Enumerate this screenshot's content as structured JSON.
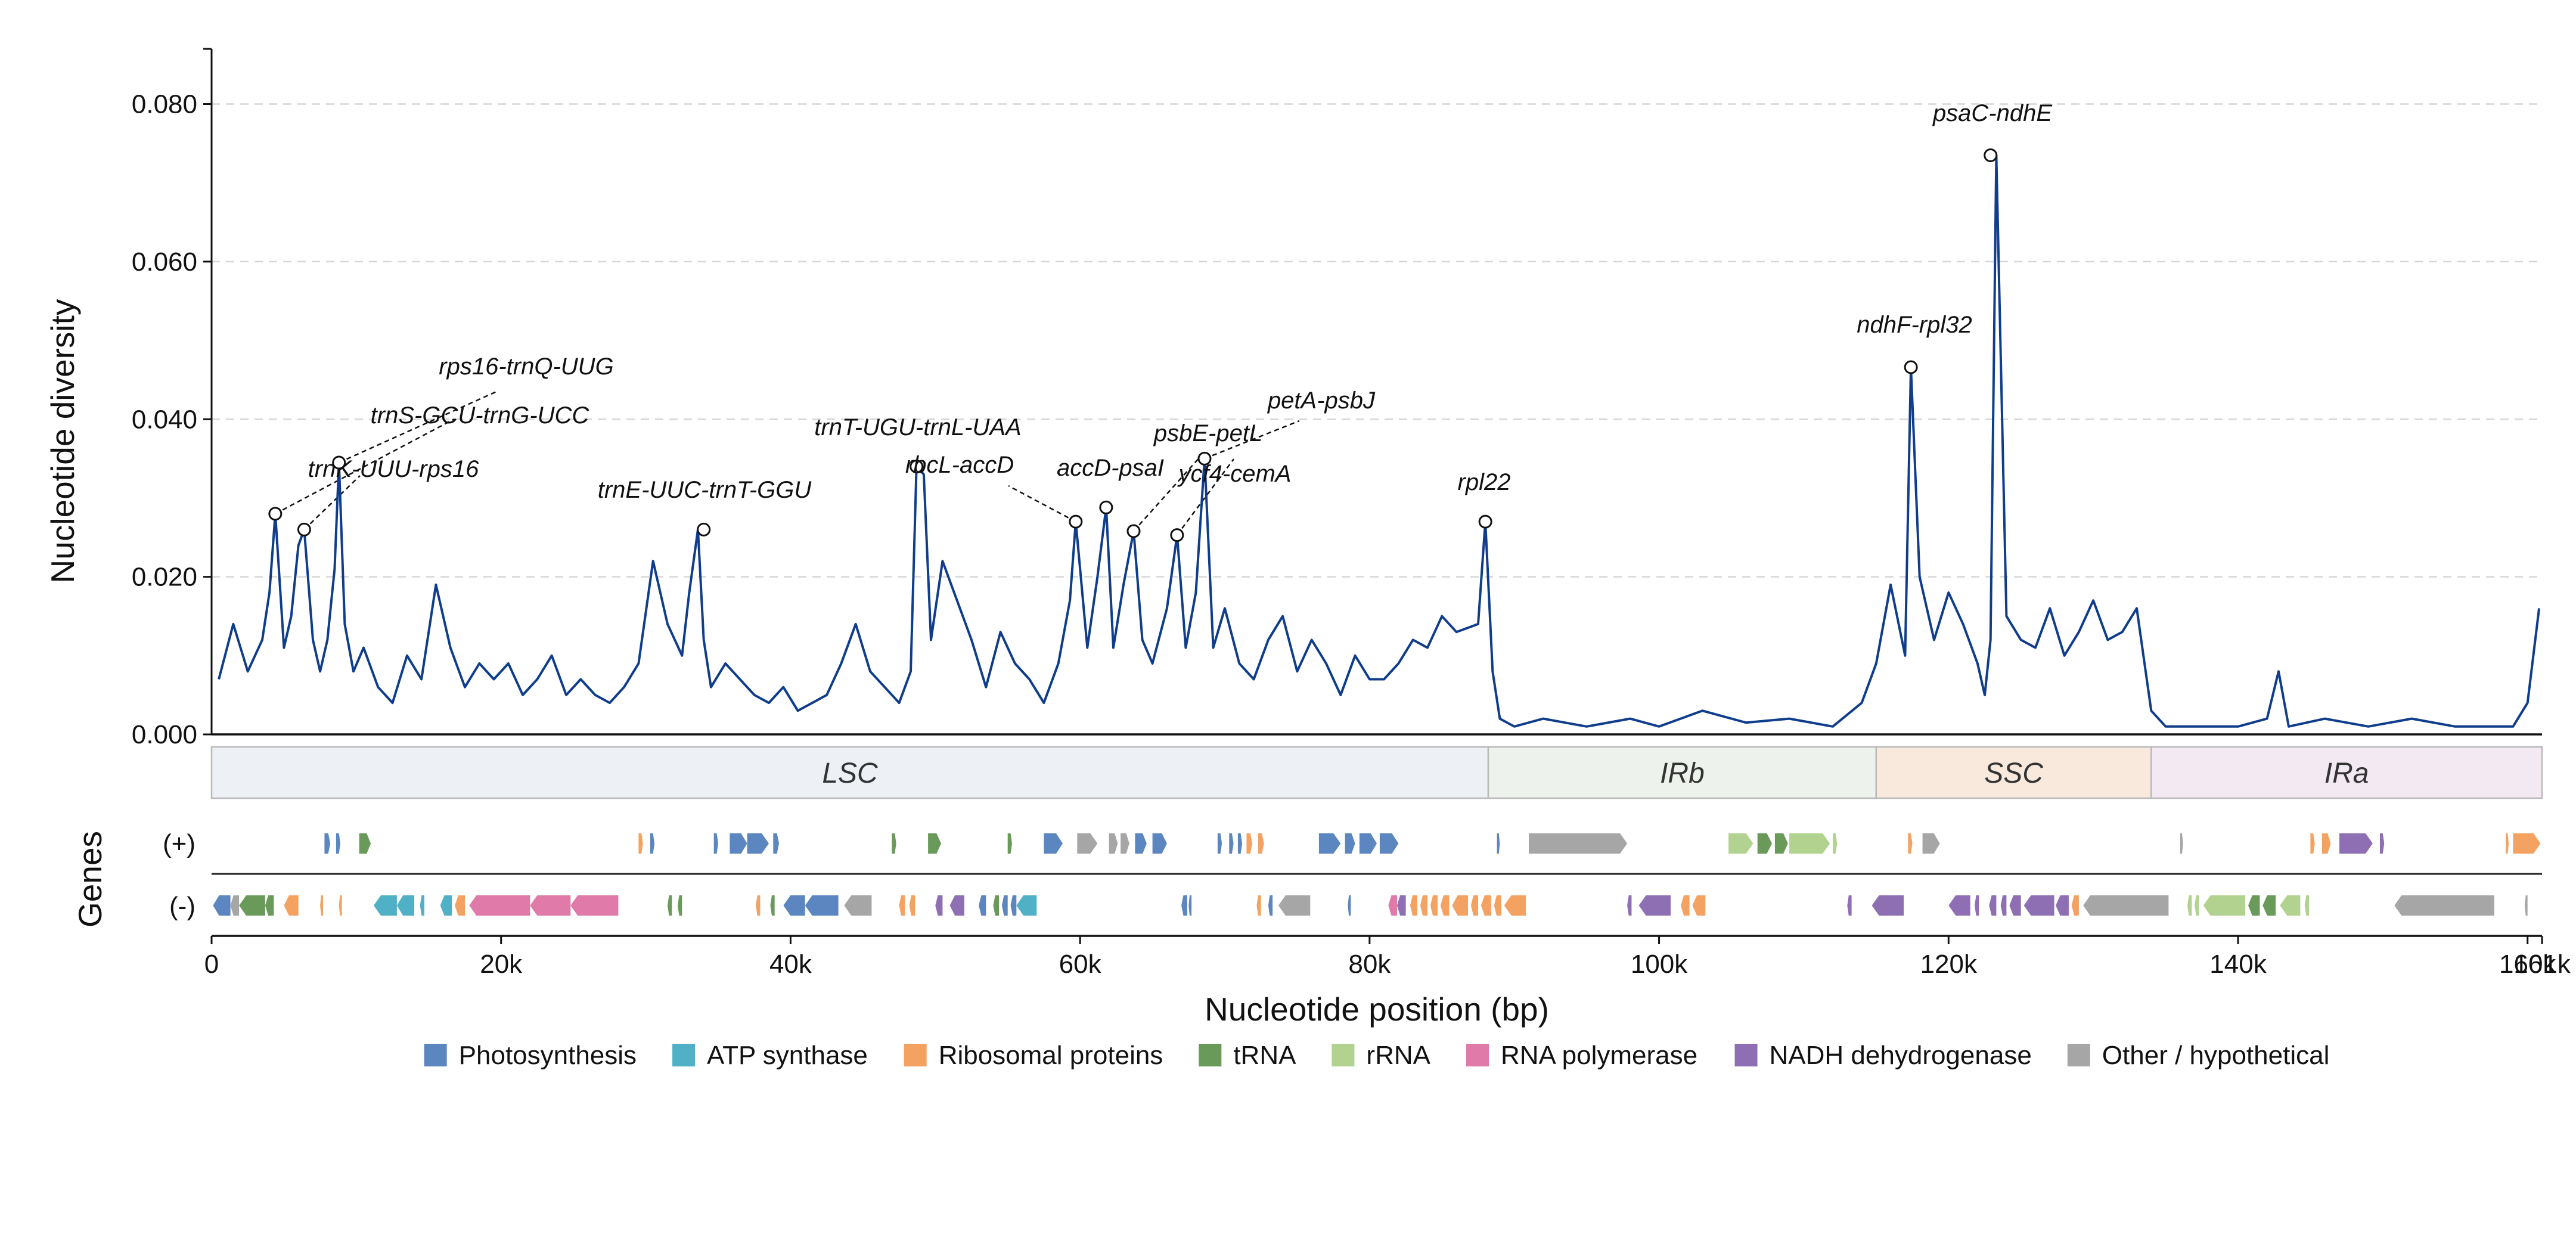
{
  "chart_data": {
    "type": "line",
    "ylabel": "Nucleotide diversity",
    "xlabel": "Nucleotide position (bp)",
    "ylim": [
      0,
      0.087
    ],
    "yticks": [
      0.0,
      0.02,
      0.04,
      0.06,
      0.08
    ],
    "ytick_labels": [
      "0.000",
      "0.020",
      "0.040",
      "0.060",
      "0.080"
    ],
    "xlim": [
      0,
      161000
    ],
    "xticks": [
      0,
      20000,
      40000,
      60000,
      80000,
      100000,
      120000,
      140000,
      160000,
      161000
    ],
    "xtick_labels": [
      "0",
      "20k",
      "40k",
      "60k",
      "80k",
      "100k",
      "120k",
      "140k",
      "160k",
      "161k"
    ],
    "grid": "y dashed",
    "line_color": "#0f3d8c",
    "series": [
      {
        "x": [
          500,
          1500,
          2500,
          3500,
          4000,
          4400,
          5000,
          5500,
          6000,
          6400,
          7000,
          7500,
          8000,
          8500,
          8800,
          9200,
          9800,
          10500,
          11500,
          12500,
          13500,
          14500,
          15500,
          16500,
          17500,
          18500,
          19500,
          20500,
          21500,
          22500,
          23500,
          24500,
          25500,
          26500,
          27500,
          28500,
          29500,
          30500,
          31500,
          32500,
          33000,
          33600,
          34000,
          34500,
          35500,
          36500,
          37500,
          38500,
          39500,
          40500,
          41500,
          42500,
          43500,
          44500,
          45500,
          46500,
          47500,
          48300,
          48700,
          49200,
          49700,
          50500,
          51500,
          52500,
          53500,
          54500,
          55500,
          56500,
          57500,
          58500,
          59300,
          59700,
          60500,
          61200,
          61800,
          62300,
          63000,
          63700,
          64300,
          65000,
          66000,
          66700,
          67300,
          68000,
          68600,
          69200,
          70000,
          71000,
          72000,
          73000,
          74000,
          75000,
          76000,
          77000,
          78000,
          79000,
          80000,
          81000,
          82000,
          83000,
          84000,
          85000,
          86000,
          87500,
          88000,
          88500,
          89000,
          90000,
          92000,
          95000,
          98000,
          100000,
          103000,
          106000,
          109000,
          112000,
          114000,
          115000,
          116000,
          117000,
          117400,
          118000,
          119000,
          120000,
          121000,
          122000,
          122500,
          122900,
          123300,
          124000,
          125000,
          126000,
          127000,
          128000,
          129000,
          130000,
          131000,
          132000,
          133000,
          134000,
          135000,
          137000,
          140000,
          142000,
          142800,
          143500,
          146000,
          149000,
          152000,
          155000,
          157000,
          159000,
          160000,
          160800
        ],
        "y": [
          0.007,
          0.014,
          0.008,
          0.012,
          0.018,
          0.028,
          0.011,
          0.015,
          0.024,
          0.026,
          0.012,
          0.008,
          0.012,
          0.021,
          0.0345,
          0.014,
          0.008,
          0.011,
          0.006,
          0.004,
          0.01,
          0.007,
          0.019,
          0.011,
          0.006,
          0.009,
          0.007,
          0.009,
          0.005,
          0.007,
          0.01,
          0.005,
          0.007,
          0.005,
          0.004,
          0.006,
          0.009,
          0.022,
          0.014,
          0.01,
          0.018,
          0.026,
          0.012,
          0.006,
          0.009,
          0.007,
          0.005,
          0.004,
          0.006,
          0.003,
          0.004,
          0.005,
          0.009,
          0.014,
          0.008,
          0.006,
          0.004,
          0.008,
          0.034,
          0.033,
          0.012,
          0.022,
          0.017,
          0.012,
          0.006,
          0.013,
          0.009,
          0.007,
          0.004,
          0.009,
          0.017,
          0.027,
          0.011,
          0.02,
          0.0288,
          0.011,
          0.019,
          0.0258,
          0.012,
          0.009,
          0.016,
          0.0253,
          0.011,
          0.018,
          0.035,
          0.011,
          0.016,
          0.009,
          0.007,
          0.012,
          0.015,
          0.008,
          0.012,
          0.009,
          0.005,
          0.01,
          0.007,
          0.007,
          0.009,
          0.012,
          0.011,
          0.015,
          0.013,
          0.014,
          0.027,
          0.008,
          0.002,
          0.001,
          0.002,
          0.001,
          0.002,
          0.001,
          0.003,
          0.0015,
          0.002,
          0.001,
          0.004,
          0.009,
          0.019,
          0.01,
          0.0466,
          0.02,
          0.012,
          0.018,
          0.014,
          0.009,
          0.005,
          0.012,
          0.0735,
          0.015,
          0.012,
          0.011,
          0.016,
          0.01,
          0.013,
          0.017,
          0.012,
          0.013,
          0.016,
          0.003,
          0.001,
          0.001,
          0.001,
          0.002,
          0.008,
          0.001,
          0.002,
          0.001,
          0.002,
          0.001,
          0.001,
          0.001,
          0.004,
          0.016
        ]
      }
    ],
    "annotations": [
      {
        "label": "trnK-UUU-rps16",
        "x": 6400,
        "y": 0.026
      },
      {
        "label": "trnS-GCU-trnG-UCC",
        "x": 4400,
        "y": 0.028
      },
      {
        "label": "rps16-trnQ-UUG",
        "x": 8800,
        "y": 0.0345
      },
      {
        "label": "trnE-UUC-trnT-GGU",
        "x": 34000,
        "y": 0.026
      },
      {
        "label": "trnT-UGU-trnL-UAA",
        "x": 48700,
        "y": 0.034
      },
      {
        "label": "rbcL-accD",
        "x": 59700,
        "y": 0.027
      },
      {
        "label": "accD-psaI",
        "x": 61800,
        "y": 0.0288
      },
      {
        "label": "psbE-petL",
        "x": 63700,
        "y": 0.0258
      },
      {
        "label": "ycf4-cemA",
        "x": 66700,
        "y": 0.0253
      },
      {
        "label": "petA-psbJ",
        "x": 68600,
        "y": 0.035
      },
      {
        "label": "rpl22",
        "x": 88000,
        "y": 0.027
      },
      {
        "label": "ndhF-rpl32",
        "x": 117400,
        "y": 0.0466
      },
      {
        "label": "psaC-ndhE",
        "x": 122900,
        "y": 0.0735
      }
    ],
    "regions": [
      {
        "label": "LSC",
        "start": 0,
        "end": 88200,
        "color": "#edf1f5"
      },
      {
        "label": "IRb",
        "start": 88200,
        "end": 115000,
        "color": "#edf3ec"
      },
      {
        "label": "SSC",
        "start": 115000,
        "end": 134000,
        "color": "#f8e9dc"
      },
      {
        "label": "IRa",
        "start": 134000,
        "end": 161000,
        "color": "#f3e9f3"
      }
    ],
    "genes_label": "Genes",
    "strand_labels": {
      "plus": "(+)",
      "minus": "(-)"
    },
    "gene_categories": [
      {
        "name": "Photosynthesis",
        "color": "#5b86c0"
      },
      {
        "name": "ATP synthase",
        "color": "#4fb0c6"
      },
      {
        "name": "Ribosomal proteins",
        "color": "#f4a261"
      },
      {
        "name": "tRNA",
        "color": "#6a9a5a"
      },
      {
        "name": "rRNA",
        "color": "#b2d38f"
      },
      {
        "name": "RNA polymerase",
        "color": "#e07aa8"
      },
      {
        "name": "NADH dehydrogenase",
        "color": "#8e6fb3"
      },
      {
        "name": "Other / hypothetical",
        "color": "#a6a6a6"
      }
    ],
    "genes_plus": [
      {
        "s": 7800,
        "e": 8200,
        "c": 0
      },
      {
        "s": 8600,
        "e": 8900,
        "c": 0
      },
      {
        "s": 10200,
        "e": 11000,
        "c": 3
      },
      {
        "s": 29500,
        "e": 29800,
        "c": 2
      },
      {
        "s": 30300,
        "e": 30600,
        "c": 0
      },
      {
        "s": 34700,
        "e": 35000,
        "c": 0
      },
      {
        "s": 35800,
        "e": 37000,
        "c": 0
      },
      {
        "s": 37000,
        "e": 38500,
        "c": 0
      },
      {
        "s": 38800,
        "e": 39200,
        "c": 0
      },
      {
        "s": 47000,
        "e": 47300,
        "c": 3
      },
      {
        "s": 49500,
        "e": 50400,
        "c": 3
      },
      {
        "s": 55000,
        "e": 55300,
        "c": 3
      },
      {
        "s": 57500,
        "e": 58800,
        "c": 0
      },
      {
        "s": 59800,
        "e": 61200,
        "c": 7
      },
      {
        "s": 62000,
        "e": 62600,
        "c": 7
      },
      {
        "s": 62800,
        "e": 63400,
        "c": 7
      },
      {
        "s": 63800,
        "e": 64600,
        "c": 0
      },
      {
        "s": 65000,
        "e": 66000,
        "c": 0
      },
      {
        "s": 69500,
        "e": 69800,
        "c": 0
      },
      {
        "s": 70300,
        "e": 70600,
        "c": 0
      },
      {
        "s": 70900,
        "e": 71200,
        "c": 0
      },
      {
        "s": 71500,
        "e": 71900,
        "c": 2
      },
      {
        "s": 72300,
        "e": 72700,
        "c": 2
      },
      {
        "s": 76500,
        "e": 78000,
        "c": 0
      },
      {
        "s": 78300,
        "e": 79000,
        "c": 0
      },
      {
        "s": 79300,
        "e": 80500,
        "c": 0
      },
      {
        "s": 80700,
        "e": 82000,
        "c": 0
      },
      {
        "s": 88800,
        "e": 89000,
        "c": 0
      },
      {
        "s": 91000,
        "e": 97800,
        "c": 7
      },
      {
        "s": 104800,
        "e": 106500,
        "c": 4
      },
      {
        "s": 106800,
        "e": 107800,
        "c": 3
      },
      {
        "s": 108000,
        "e": 108900,
        "c": 3
      },
      {
        "s": 109000,
        "e": 111800,
        "c": 4
      },
      {
        "s": 112000,
        "e": 112300,
        "c": 4
      },
      {
        "s": 117200,
        "e": 117500,
        "c": 2
      },
      {
        "s": 118200,
        "e": 119400,
        "c": 7
      },
      {
        "s": 136000,
        "e": 136200,
        "c": 7
      },
      {
        "s": 145000,
        "e": 145300,
        "c": 2
      },
      {
        "s": 145800,
        "e": 146400,
        "c": 2
      },
      {
        "s": 147000,
        "e": 149300,
        "c": 6
      },
      {
        "s": 149800,
        "e": 150100,
        "c": 6
      },
      {
        "s": 158500,
        "e": 158700,
        "c": 2
      },
      {
        "s": 159000,
        "e": 160900,
        "c": 2
      }
    ],
    "genes_minus": [
      {
        "s": 100,
        "e": 1300,
        "c": 0
      },
      {
        "s": 1300,
        "e": 1900,
        "c": 7
      },
      {
        "s": 1900,
        "e": 3700,
        "c": 3
      },
      {
        "s": 3700,
        "e": 4300,
        "c": 3
      },
      {
        "s": 5000,
        "e": 6000,
        "c": 2
      },
      {
        "s": 7500,
        "e": 7700,
        "c": 2
      },
      {
        "s": 8800,
        "e": 9000,
        "c": 2
      },
      {
        "s": 11200,
        "e": 12800,
        "c": 1
      },
      {
        "s": 12800,
        "e": 14000,
        "c": 1
      },
      {
        "s": 14400,
        "e": 14700,
        "c": 1
      },
      {
        "s": 15800,
        "e": 16600,
        "c": 1
      },
      {
        "s": 16800,
        "e": 17500,
        "c": 2
      },
      {
        "s": 17800,
        "e": 22000,
        "c": 5
      },
      {
        "s": 22000,
        "e": 24800,
        "c": 5
      },
      {
        "s": 24800,
        "e": 28100,
        "c": 5
      },
      {
        "s": 31500,
        "e": 31800,
        "c": 3
      },
      {
        "s": 32200,
        "e": 32500,
        "c": 3
      },
      {
        "s": 37600,
        "e": 37900,
        "c": 2
      },
      {
        "s": 38600,
        "e": 38900,
        "c": 3
      },
      {
        "s": 39500,
        "e": 41000,
        "c": 0
      },
      {
        "s": 41000,
        "e": 43300,
        "c": 0
      },
      {
        "s": 43700,
        "e": 45600,
        "c": 7
      },
      {
        "s": 47500,
        "e": 47900,
        "c": 2
      },
      {
        "s": 48200,
        "e": 48600,
        "c": 2
      },
      {
        "s": 50000,
        "e": 50500,
        "c": 6
      },
      {
        "s": 51000,
        "e": 52000,
        "c": 6
      },
      {
        "s": 53000,
        "e": 53500,
        "c": 0
      },
      {
        "s": 54000,
        "e": 54400,
        "c": 3
      },
      {
        "s": 54600,
        "e": 55000,
        "c": 0
      },
      {
        "s": 55200,
        "e": 55600,
        "c": 0
      },
      {
        "s": 55600,
        "e": 57000,
        "c": 1
      },
      {
        "s": 67000,
        "e": 67400,
        "c": 0
      },
      {
        "s": 67500,
        "e": 67700,
        "c": 0
      },
      {
        "s": 72200,
        "e": 72500,
        "c": 2
      },
      {
        "s": 73000,
        "e": 73300,
        "c": 0
      },
      {
        "s": 73700,
        "e": 75900,
        "c": 7
      },
      {
        "s": 78500,
        "e": 78700,
        "c": 0
      },
      {
        "s": 81300,
        "e": 81900,
        "c": 5
      },
      {
        "s": 81900,
        "e": 82500,
        "c": 6
      },
      {
        "s": 82800,
        "e": 83300,
        "c": 2
      },
      {
        "s": 83500,
        "e": 84000,
        "c": 2
      },
      {
        "s": 84200,
        "e": 84700,
        "c": 2
      },
      {
        "s": 84900,
        "e": 85500,
        "c": 2
      },
      {
        "s": 85700,
        "e": 86800,
        "c": 2
      },
      {
        "s": 87000,
        "e": 87500,
        "c": 2
      },
      {
        "s": 87700,
        "e": 88400,
        "c": 2
      },
      {
        "s": 88600,
        "e": 89100,
        "c": 2
      },
      {
        "s": 89300,
        "e": 90800,
        "c": 2
      },
      {
        "s": 97800,
        "e": 98100,
        "c": 6
      },
      {
        "s": 98600,
        "e": 100800,
        "c": 6
      },
      {
        "s": 101500,
        "e": 102100,
        "c": 2
      },
      {
        "s": 102300,
        "e": 103200,
        "c": 2
      },
      {
        "s": 113000,
        "e": 113300,
        "c": 6
      },
      {
        "s": 114700,
        "e": 116900,
        "c": 6
      },
      {
        "s": 120000,
        "e": 121500,
        "c": 6
      },
      {
        "s": 121800,
        "e": 122100,
        "c": 6
      },
      {
        "s": 122800,
        "e": 123300,
        "c": 6
      },
      {
        "s": 123600,
        "e": 124000,
        "c": 6
      },
      {
        "s": 124200,
        "e": 125000,
        "c": 6
      },
      {
        "s": 125200,
        "e": 127300,
        "c": 6
      },
      {
        "s": 127400,
        "e": 128300,
        "c": 6
      },
      {
        "s": 128500,
        "e": 129000,
        "c": 2
      },
      {
        "s": 129300,
        "e": 135200,
        "c": 7
      },
      {
        "s": 136500,
        "e": 136800,
        "c": 4
      },
      {
        "s": 137000,
        "e": 137300,
        "c": 4
      },
      {
        "s": 137600,
        "e": 140500,
        "c": 4
      },
      {
        "s": 140700,
        "e": 141500,
        "c": 3
      },
      {
        "s": 141700,
        "e": 142600,
        "c": 3
      },
      {
        "s": 142900,
        "e": 144300,
        "c": 4
      },
      {
        "s": 144600,
        "e": 144900,
        "c": 4
      },
      {
        "s": 150800,
        "e": 157700,
        "c": 7
      },
      {
        "s": 159800,
        "e": 160000,
        "c": 7
      }
    ]
  }
}
